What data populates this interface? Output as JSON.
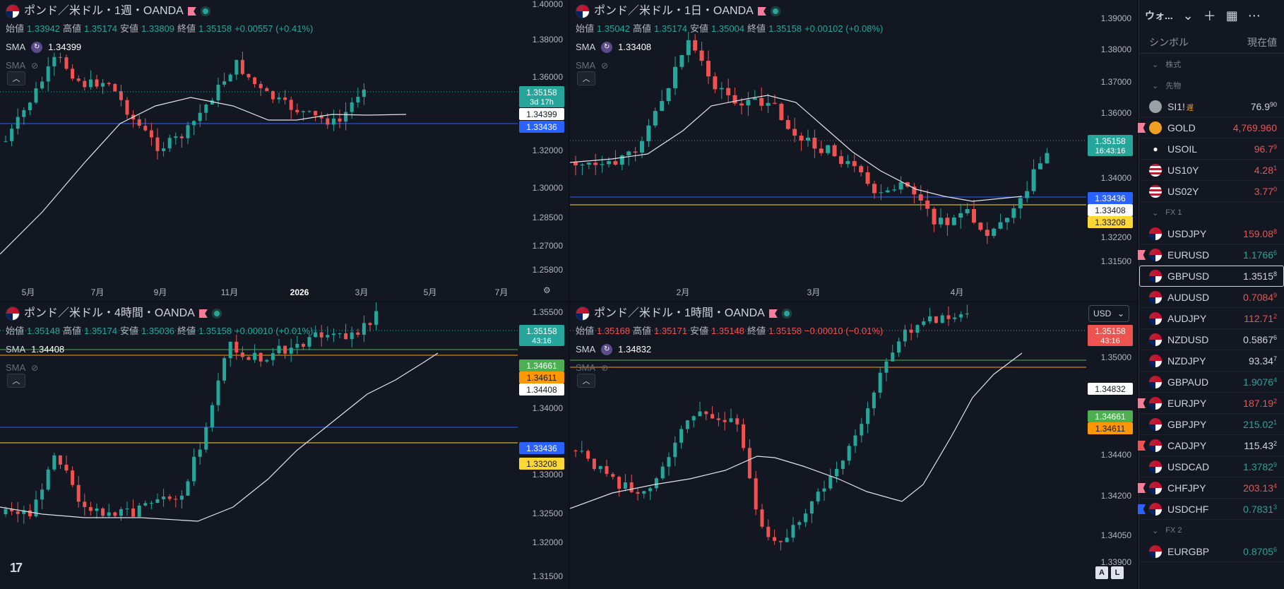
{
  "colors": {
    "up": "#26a69a",
    "down": "#ef5350",
    "sma": "#e0e3eb",
    "blue_line": "#2962ff",
    "yellow_line": "#fdd835",
    "green_line": "#4caf50",
    "orange_line": "#ff9800"
  },
  "panes": {
    "weekly": {
      "title": "ポンド／米ドル・1週・OANDA",
      "open_label": "始値",
      "open": "1.33942",
      "high_label": "高値",
      "high": "1.35174",
      "low_label": "安値",
      "low": "1.33809",
      "close_label": "終値",
      "close": "1.35158",
      "change": "+0.00557 (+0.41%)",
      "sma_label": "SMA",
      "sma_value": "1.34399",
      "sma2_label": "SMA",
      "price_axis": [
        "1.40000",
        "1.38000",
        "1.36000",
        "1.34000",
        "1.32000",
        "1.30000",
        "1.28500",
        "1.27000",
        "1.25800"
      ],
      "time_axis": [
        "5月",
        "7月",
        "9月",
        "11月",
        "2026",
        "3月",
        "5月",
        "7月"
      ],
      "labels": {
        "last": "1.35158",
        "countdown": "3d 17h",
        "sma": "1.34399",
        "blue": "1.33436"
      }
    },
    "daily": {
      "title": "ポンド／米ドル・1日・OANDA",
      "open_label": "始値",
      "open": "1.35042",
      "high_label": "高値",
      "high": "1.35174",
      "low_label": "安値",
      "low": "1.35004",
      "close_label": "終値",
      "close": "1.35158",
      "change": "+0.00102 (+0.08%)",
      "sma_label": "SMA",
      "sma_value": "1.33408",
      "sma2_label": "SMA",
      "price_axis": [
        "1.39000",
        "1.38000",
        "1.37000",
        "1.36000",
        "1.34000",
        "1.32200",
        "1.31500"
      ],
      "time_axis": [
        "2月",
        "3月",
        "4月"
      ],
      "labels": {
        "last": "1.35158",
        "countdown": "16:43:16",
        "blue": "1.33436",
        "sma": "1.33408",
        "yellow": "1.33208"
      }
    },
    "h4": {
      "title": "ポンド／米ドル・4時間・OANDA",
      "open_label": "始値",
      "open": "1.35148",
      "high_label": "高値",
      "high": "1.35174",
      "low_label": "安値",
      "low": "1.35036",
      "close_label": "終値",
      "close": "1.35158",
      "change": "+0.00010 (+0.01%)",
      "sma_label": "SMA",
      "sma_value": "1.34408",
      "sma2_label": "SMA",
      "price_axis": [
        "1.35500",
        "1.34000",
        "1.33000",
        "1.32500",
        "1.32000",
        "1.31500"
      ],
      "labels": {
        "last": "1.35158",
        "countdown": "43:16",
        "green": "1.34661",
        "orange": "1.34611",
        "sma": "1.34408",
        "blue": "1.33436",
        "yellow": "1.33208"
      }
    },
    "h1": {
      "title": "ポンド／米ドル・1時間・OANDA",
      "open_label": "始値",
      "open": "1.35168",
      "high_label": "高値",
      "high": "1.35171",
      "low_label": "安値",
      "low": "1.35148",
      "close_label": "終値",
      "close": "1.35158",
      "change": "−0.00010 (−0.01%)",
      "sma_label": "SMA",
      "sma_value": "1.34832",
      "sma2_label": "SMA",
      "currency": "USD",
      "price_axis": [
        "1.35000",
        "1.34400",
        "1.34200",
        "1.34050",
        "1.33900"
      ],
      "labels": {
        "last": "1.35158",
        "countdown": "43:16",
        "sma": "1.34832",
        "green": "1.34661",
        "orange": "1.34611"
      },
      "corner_a": "A",
      "corner_l": "L"
    }
  },
  "watchlist": {
    "name": "ウォ...",
    "col_symbol": "シンボル",
    "col_price": "現在値",
    "sections": {
      "stocks": "株式",
      "futures": "先物",
      "fx1": "FX 1",
      "fx2": "FX 2"
    },
    "futures": [
      {
        "sym": "SI1!",
        "main": "76.9",
        "sup": "90",
        "dir": "neu",
        "icon": "ico-silver",
        "delayed": "遅"
      },
      {
        "sym": "GOLD",
        "main": "4,769.960",
        "sup": "",
        "dir": "dn",
        "icon": "ico-gold",
        "flag": "#f77c9a"
      },
      {
        "sym": "USOIL",
        "main": "96.7",
        "sup": "9",
        "dir": "dn",
        "icon": "ico-oil"
      },
      {
        "sym": "US10Y",
        "main": "4.28",
        "sup": "1",
        "dir": "dn",
        "icon": "ico-us"
      },
      {
        "sym": "US02Y",
        "main": "3.77",
        "sup": "0",
        "dir": "dn",
        "icon": "ico-us"
      }
    ],
    "fx1": [
      {
        "sym": "USDJPY",
        "main": "159.08",
        "sup": "8",
        "dir": "dn"
      },
      {
        "sym": "EURUSD",
        "main": "1.1766",
        "sup": "6",
        "dir": "up",
        "flag": "#f77c9a"
      },
      {
        "sym": "GBPUSD",
        "main": "1.3515",
        "sup": "8",
        "dir": "neu",
        "selected": true
      },
      {
        "sym": "AUDUSD",
        "main": "0.7084",
        "sup": "9",
        "dir": "dn"
      },
      {
        "sym": "AUDJPY",
        "main": "112.71",
        "sup": "2",
        "dir": "dn"
      },
      {
        "sym": "NZDUSD",
        "main": "0.5867",
        "sup": "6",
        "dir": "neu"
      },
      {
        "sym": "NZDJPY",
        "main": "93.34",
        "sup": "7",
        "dir": "neu"
      },
      {
        "sym": "GBPAUD",
        "main": "1.9076",
        "sup": "4",
        "dir": "up"
      },
      {
        "sym": "EURJPY",
        "main": "187.19",
        "sup": "2",
        "dir": "dn",
        "flag": "#f77c9a"
      },
      {
        "sym": "GBPJPY",
        "main": "215.02",
        "sup": "1",
        "dir": "up"
      },
      {
        "sym": "CADJPY",
        "main": "115.43",
        "sup": "2",
        "dir": "neu",
        "flag": "#ef5350"
      },
      {
        "sym": "USDCAD",
        "main": "1.3782",
        "sup": "9",
        "dir": "up"
      },
      {
        "sym": "CHFJPY",
        "main": "203.13",
        "sup": "4",
        "dir": "dn",
        "flag": "#f77c9a"
      },
      {
        "sym": "USDCHF",
        "main": "0.7831",
        "sup": "3",
        "dir": "up",
        "flag": "#2962ff"
      }
    ],
    "fx2": [
      {
        "sym": "EURGBP",
        "main": "0.8705",
        "sup": "6",
        "dir": "up"
      }
    ]
  }
}
